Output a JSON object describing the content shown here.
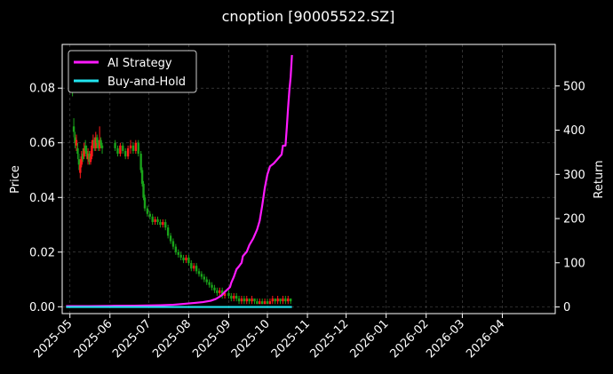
{
  "chart_data": {
    "type": "line",
    "title": "cnoption [90005522.SZ]",
    "xlabel": "",
    "ylabel_left": "Price",
    "ylabel_right": "Return",
    "x_ticks": [
      "2025-05",
      "2025-06",
      "2025-07",
      "2025-08",
      "2025-09",
      "2025-10",
      "2025-11",
      "2025-12",
      "2026-01",
      "2026-02",
      "2026-03",
      "2026-04"
    ],
    "x_range": [
      "2025-04-25",
      "2026-05-12"
    ],
    "y_left_ticks": [
      0.0,
      0.02,
      0.04,
      0.06,
      0.08
    ],
    "y_left_tick_labels": [
      "0.00",
      "0.02",
      "0.04",
      "0.06",
      "0.08"
    ],
    "y_left_range": [
      -0.0025,
      0.096
    ],
    "y_right_ticks": [
      0,
      100,
      200,
      300,
      400,
      500
    ],
    "y_right_tick_labels": [
      "0",
      "100",
      "200",
      "300",
      "400",
      "500"
    ],
    "y_right_range": [
      -15,
      594
    ],
    "grid": true,
    "legend_position": "top-left",
    "colors": {
      "background": "#000000",
      "up_candle": "#ff1a1a",
      "down_candle": "#1aa31a",
      "ai_strategy": "#ff1aff",
      "buy_and_hold": "#22e5f0",
      "grid": "#444444",
      "text": "#ffffff"
    },
    "series": [
      {
        "name": "AI Strategy",
        "axis": "right",
        "points": [
          [
            "2025-04-28",
            2
          ],
          [
            "2025-05-15",
            2
          ],
          [
            "2025-06-01",
            2.5
          ],
          [
            "2025-06-20",
            3
          ],
          [
            "2025-07-10",
            4
          ],
          [
            "2025-07-20",
            5
          ],
          [
            "2025-07-28",
            7
          ],
          [
            "2025-08-05",
            9
          ],
          [
            "2025-08-12",
            11
          ],
          [
            "2025-08-18",
            14
          ],
          [
            "2025-08-22",
            18
          ],
          [
            "2025-08-26",
            25
          ],
          [
            "2025-08-29",
            34
          ],
          [
            "2025-09-02",
            45
          ],
          [
            "2025-09-03",
            55
          ],
          [
            "2025-09-05",
            68
          ],
          [
            "2025-09-07",
            85
          ],
          [
            "2025-09-09",
            92
          ],
          [
            "2025-09-11",
            100
          ],
          [
            "2025-09-12",
            115
          ],
          [
            "2025-09-15",
            125
          ],
          [
            "2025-09-17",
            140
          ],
          [
            "2025-09-20",
            155
          ],
          [
            "2025-09-23",
            175
          ],
          [
            "2025-09-25",
            195
          ],
          [
            "2025-09-27",
            230
          ],
          [
            "2025-09-29",
            270
          ],
          [
            "2025-10-01",
            300
          ],
          [
            "2025-10-03",
            318
          ],
          [
            "2025-10-06",
            325
          ],
          [
            "2025-10-09",
            335
          ],
          [
            "2025-10-12",
            345
          ],
          [
            "2025-10-13",
            365
          ],
          [
            "2025-10-15",
            365
          ],
          [
            "2025-10-16",
            405
          ],
          [
            "2025-10-17",
            450
          ],
          [
            "2025-10-18",
            490
          ],
          [
            "2025-10-19",
            520
          ],
          [
            "2025-10-20",
            570
          ]
        ]
      },
      {
        "name": "Buy-and-Hold",
        "axis": "right",
        "points": [
          [
            "2025-04-28",
            0
          ],
          [
            "2025-06-15",
            0
          ],
          [
            "2025-08-15",
            0
          ],
          [
            "2025-10-20",
            0
          ]
        ]
      }
    ],
    "candles": [
      [
        "2025-05-03",
        0.08,
        0.079,
        0.082,
        0.077
      ],
      [
        "2025-05-04",
        0.066,
        0.064,
        0.069,
        0.062
      ],
      [
        "2025-05-05",
        0.062,
        0.06,
        0.064,
        0.058
      ],
      [
        "2025-05-06",
        0.059,
        0.061,
        0.063,
        0.057
      ],
      [
        "2025-05-07",
        0.058,
        0.056,
        0.06,
        0.054
      ],
      [
        "2025-05-08",
        0.054,
        0.052,
        0.056,
        0.05
      ],
      [
        "2025-05-09",
        0.049,
        0.052,
        0.054,
        0.047
      ],
      [
        "2025-05-10",
        0.052,
        0.055,
        0.057,
        0.051
      ],
      [
        "2025-05-11",
        0.056,
        0.054,
        0.058,
        0.053
      ],
      [
        "2025-05-12",
        0.055,
        0.058,
        0.06,
        0.054
      ],
      [
        "2025-05-13",
        0.059,
        0.057,
        0.061,
        0.056
      ],
      [
        "2025-05-14",
        0.057,
        0.055,
        0.059,
        0.054
      ],
      [
        "2025-05-15",
        0.054,
        0.056,
        0.058,
        0.052
      ],
      [
        "2025-05-16",
        0.056,
        0.053,
        0.057,
        0.052
      ],
      [
        "2025-05-17",
        0.053,
        0.055,
        0.057,
        0.052
      ],
      [
        "2025-05-18",
        0.055,
        0.059,
        0.061,
        0.054
      ],
      [
        "2025-05-19",
        0.059,
        0.061,
        0.063,
        0.058
      ],
      [
        "2025-05-20",
        0.061,
        0.058,
        0.062,
        0.057
      ],
      [
        "2025-05-21",
        0.058,
        0.062,
        0.064,
        0.057
      ],
      [
        "2025-05-22",
        0.062,
        0.06,
        0.063,
        0.058
      ],
      [
        "2025-05-23",
        0.06,
        0.058,
        0.061,
        0.057
      ],
      [
        "2025-05-24",
        0.058,
        0.061,
        0.066,
        0.057
      ],
      [
        "2025-05-25",
        0.061,
        0.059,
        0.062,
        0.058
      ],
      [
        "2025-05-26",
        0.059,
        0.058,
        0.06,
        0.056
      ],
      [
        "2025-06-05",
        0.06,
        0.058,
        0.061,
        0.057
      ],
      [
        "2025-06-07",
        0.058,
        0.056,
        0.059,
        0.055
      ],
      [
        "2025-06-09",
        0.056,
        0.059,
        0.06,
        0.055
      ],
      [
        "2025-06-11",
        0.059,
        0.057,
        0.06,
        0.056
      ],
      [
        "2025-06-13",
        0.057,
        0.055,
        0.058,
        0.054
      ],
      [
        "2025-06-15",
        0.055,
        0.058,
        0.059,
        0.054
      ],
      [
        "2025-06-17",
        0.058,
        0.059,
        0.061,
        0.056
      ],
      [
        "2025-06-19",
        0.059,
        0.057,
        0.06,
        0.056
      ],
      [
        "2025-06-21",
        0.057,
        0.06,
        0.061,
        0.056
      ],
      [
        "2025-06-23",
        0.06,
        0.056,
        0.061,
        0.055
      ],
      [
        "2025-06-25",
        0.056,
        0.05,
        0.057,
        0.049
      ],
      [
        "2025-06-26",
        0.05,
        0.045,
        0.051,
        0.044
      ],
      [
        "2025-06-27",
        0.045,
        0.04,
        0.046,
        0.039
      ],
      [
        "2025-06-28",
        0.04,
        0.036,
        0.041,
        0.035
      ],
      [
        "2025-06-30",
        0.036,
        0.034,
        0.037,
        0.033
      ],
      [
        "2025-07-02",
        0.034,
        0.033,
        0.035,
        0.032
      ],
      [
        "2025-07-04",
        0.033,
        0.031,
        0.034,
        0.03
      ],
      [
        "2025-07-06",
        0.031,
        0.032,
        0.033,
        0.03
      ],
      [
        "2025-07-08",
        0.032,
        0.031,
        0.033,
        0.03
      ],
      [
        "2025-07-10",
        0.031,
        0.03,
        0.032,
        0.029
      ],
      [
        "2025-07-12",
        0.03,
        0.031,
        0.032,
        0.029
      ],
      [
        "2025-07-14",
        0.031,
        0.029,
        0.032,
        0.028
      ],
      [
        "2025-07-16",
        0.029,
        0.026,
        0.03,
        0.025
      ],
      [
        "2025-07-18",
        0.026,
        0.024,
        0.027,
        0.023
      ],
      [
        "2025-07-20",
        0.024,
        0.022,
        0.025,
        0.021
      ],
      [
        "2025-07-22",
        0.022,
        0.02,
        0.023,
        0.019
      ],
      [
        "2025-07-24",
        0.02,
        0.019,
        0.021,
        0.018
      ],
      [
        "2025-07-26",
        0.019,
        0.018,
        0.02,
        0.017
      ],
      [
        "2025-07-28",
        0.018,
        0.017,
        0.019,
        0.016
      ],
      [
        "2025-07-30",
        0.017,
        0.018,
        0.019,
        0.016
      ],
      [
        "2025-08-01",
        0.018,
        0.016,
        0.019,
        0.015
      ],
      [
        "2025-08-03",
        0.016,
        0.014,
        0.017,
        0.013
      ],
      [
        "2025-08-05",
        0.014,
        0.015,
        0.016,
        0.013
      ],
      [
        "2025-08-07",
        0.015,
        0.013,
        0.016,
        0.012
      ],
      [
        "2025-08-09",
        0.013,
        0.012,
        0.014,
        0.011
      ],
      [
        "2025-08-11",
        0.012,
        0.011,
        0.013,
        0.01
      ],
      [
        "2025-08-13",
        0.011,
        0.01,
        0.012,
        0.009
      ],
      [
        "2025-08-15",
        0.01,
        0.009,
        0.011,
        0.008
      ],
      [
        "2025-08-17",
        0.009,
        0.008,
        0.01,
        0.007
      ],
      [
        "2025-08-19",
        0.008,
        0.007,
        0.009,
        0.006
      ],
      [
        "2025-08-21",
        0.007,
        0.006,
        0.008,
        0.005
      ],
      [
        "2025-08-23",
        0.006,
        0.005,
        0.007,
        0.004
      ],
      [
        "2025-08-25",
        0.005,
        0.006,
        0.007,
        0.004
      ],
      [
        "2025-08-27",
        0.006,
        0.004,
        0.007,
        0.003
      ],
      [
        "2025-08-29",
        0.004,
        0.005,
        0.006,
        0.003
      ],
      [
        "2025-09-01",
        0.005,
        0.004,
        0.006,
        0.003
      ],
      [
        "2025-09-03",
        0.004,
        0.003,
        0.005,
        0.002
      ],
      [
        "2025-09-05",
        0.003,
        0.004,
        0.005,
        0.002
      ],
      [
        "2025-09-07",
        0.004,
        0.003,
        0.005,
        0.002
      ],
      [
        "2025-09-09",
        0.003,
        0.002,
        0.004,
        0.001
      ],
      [
        "2025-09-11",
        0.002,
        0.003,
        0.004,
        0.001
      ],
      [
        "2025-09-13",
        0.003,
        0.002,
        0.004,
        0.001
      ],
      [
        "2025-09-15",
        0.002,
        0.003,
        0.004,
        0.001
      ],
      [
        "2025-09-17",
        0.003,
        0.002,
        0.003,
        0.001
      ],
      [
        "2025-09-19",
        0.002,
        0.003,
        0.004,
        0.001
      ],
      [
        "2025-09-21",
        0.003,
        0.002,
        0.003,
        0.001
      ],
      [
        "2025-09-23",
        0.002,
        0.001,
        0.003,
        0.001
      ],
      [
        "2025-09-25",
        0.001,
        0.002,
        0.003,
        0.001
      ],
      [
        "2025-09-27",
        0.002,
        0.001,
        0.003,
        0.001
      ],
      [
        "2025-09-29",
        0.001,
        0.002,
        0.003,
        0.001
      ],
      [
        "2025-10-01",
        0.002,
        0.001,
        0.003,
        0.001
      ],
      [
        "2025-10-03",
        0.001,
        0.002,
        0.003,
        0.001
      ],
      [
        "2025-10-05",
        0.002,
        0.003,
        0.004,
        0.001
      ],
      [
        "2025-10-07",
        0.003,
        0.002,
        0.003,
        0.001
      ],
      [
        "2025-10-09",
        0.002,
        0.003,
        0.004,
        0.001
      ],
      [
        "2025-10-11",
        0.003,
        0.002,
        0.003,
        0.001
      ],
      [
        "2025-10-13",
        0.002,
        0.003,
        0.004,
        0.001
      ],
      [
        "2025-10-15",
        0.003,
        0.002,
        0.004,
        0.001
      ],
      [
        "2025-10-17",
        0.002,
        0.003,
        0.004,
        0.001
      ],
      [
        "2025-10-19",
        0.003,
        0.002,
        0.003,
        0.001
      ]
    ]
  }
}
